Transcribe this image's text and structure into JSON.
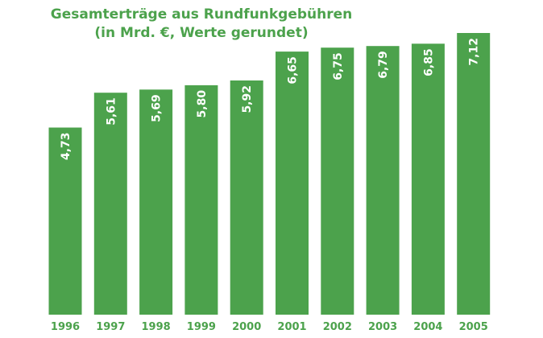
{
  "chart_data": {
    "type": "bar",
    "title": "Gesamterträge aus Rundfunkgebühren",
    "subtitle": "(in Mrd. €, Werte gerundet)",
    "categories": [
      "1996",
      "1997",
      "1998",
      "1999",
      "2000",
      "2001",
      "2002",
      "2003",
      "2004",
      "2005"
    ],
    "values": [
      4.73,
      5.61,
      5.69,
      5.8,
      5.92,
      6.65,
      6.75,
      6.79,
      6.85,
      7.12
    ],
    "value_labels": [
      "4,73",
      "5,61",
      "5,69",
      "5,80",
      "5,92",
      "6,65",
      "6,75",
      "6,79",
      "6,85",
      "7,12"
    ],
    "xlabel": "",
    "ylabel": "",
    "ylim": [
      0,
      7.12
    ],
    "grid": false,
    "legend": "none",
    "colors": {
      "bar": "#4ca24c",
      "title": "#4ca24c",
      "tick_label": "#4ca24c",
      "value_label": "#ffffff"
    }
  }
}
